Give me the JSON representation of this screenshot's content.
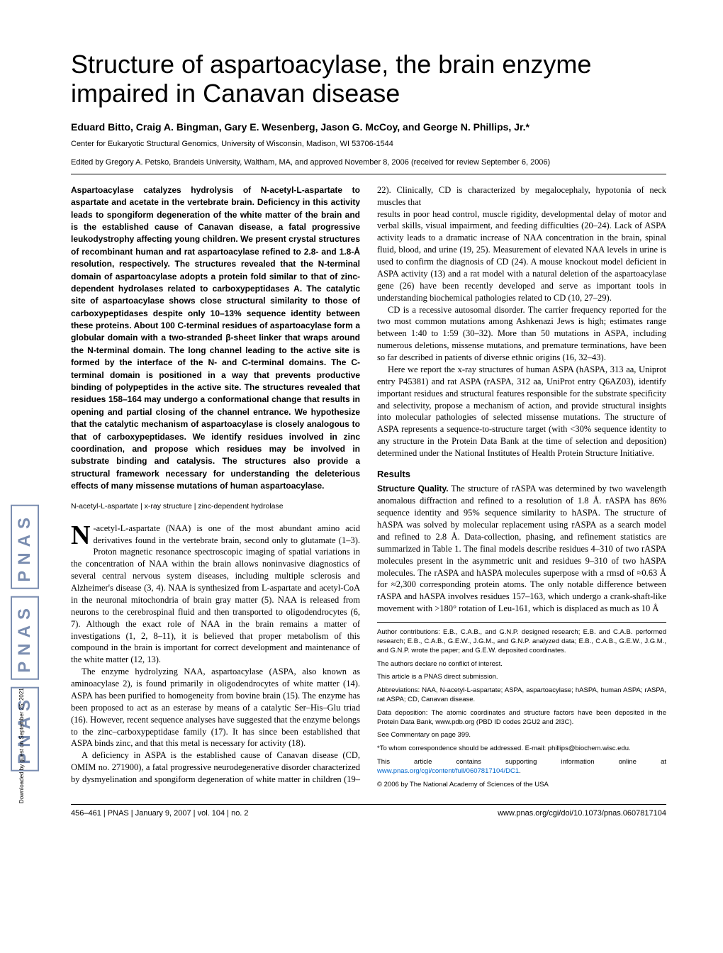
{
  "title": "Structure of aspartoacylase, the brain enzyme impaired in Canavan disease",
  "authors": "Eduard Bitto, Craig A. Bingman, Gary E. Wesenberg, Jason G. McCoy, and George N. Phillips, Jr.*",
  "affiliation": "Center for Eukaryotic Structural Genomics, University of Wisconsin, Madison, WI 53706-1544",
  "editor_line": "Edited by Gregory A. Petsko, Brandeis University, Waltham, MA, and approved November 8, 2006 (received for review September 6, 2006)",
  "abstract": "Aspartoacylase catalyzes hydrolysis of N-acetyl-L-aspartate to aspartate and acetate in the vertebrate brain. Deficiency in this activity leads to spongiform degeneration of the white matter of the brain and is the established cause of Canavan disease, a fatal progressive leukodystrophy affecting young children. We present crystal structures of recombinant human and rat aspartoacylase refined to 2.8- and 1.8-Å resolution, respectively. The structures revealed that the N-terminal domain of aspartoacylase adopts a protein fold similar to that of zinc-dependent hydrolases related to carboxypeptidases A. The catalytic site of aspartoacylase shows close structural similarity to those of carboxypeptidases despite only 10–13% sequence identity between these proteins. About 100 C-terminal residues of aspartoacylase form a globular domain with a two-stranded β-sheet linker that wraps around the N-terminal domain. The long channel leading to the active site is formed by the interface of the N- and C-terminal domains. The C-terminal domain is positioned in a way that prevents productive binding of polypeptides in the active site. The structures revealed that residues 158–164 may undergo a conformational change that results in opening and partial closing of the channel entrance. We hypothesize that the catalytic mechanism of aspartoacylase is closely analogous to that of carboxypeptidases. We identify residues involved in zinc coordination, and propose which residues may be involved in substrate binding and catalysis. The structures also provide a structural framework necessary for understanding the deleterious effects of many missense mutations of human aspartoacylase.",
  "keywords": "N-acetyl-L-aspartate | x-ray structure | zinc-dependent hydrolase",
  "dropcap": "N",
  "para1_start": "-acetyl-L-aspartate (NAA) is one of the most abundant amino acid derivatives found in the vertebrate brain, second only to glutamate (1–3). Proton magnetic resonance spectroscopic imaging of spatial variations in the concentration of NAA within the brain allows noninvasive diagnostics of several central nervous system diseases, including multiple sclerosis and Alzheimer's disease (3, 4). NAA is synthesized from L-aspartate and acetyl-CoA in the neuronal mitochondria of brain gray matter (5). NAA is released from neurons to the cerebrospinal fluid and then transported to oligodendrocytes (6, 7). Although the exact role of NAA in the brain remains a matter of investigations (1, 2, 8–11), it is believed that proper metabolism of this compound in the brain is important for correct development and maintenance of the white matter (12, 13).",
  "para2": "The enzyme hydrolyzing NAA, aspartoacylase (ASPA, also known as aminoacylase 2), is found primarily in oligodendrocytes of white matter (14). ASPA has been purified to homogeneity from bovine brain (15). The enzyme has been proposed to act as an esterase by means of a catalytic Ser–His–Glu triad (16). However, recent sequence analyses have suggested that the enzyme belongs to the zinc–carboxypeptidase family (17). It has since been established that ASPA binds zinc, and that this metal is necessary for activity (18).",
  "para3": "A deficiency in ASPA is the established cause of Canavan disease (CD, OMIM no. 271900), a fatal progressive neurodegenerative disorder characterized by dysmyelination and spongiform degeneration of white matter in children (19–22). Clinically, CD is characterized by megalocephaly, hypotonia of neck muscles that",
  "para4": "results in poor head control, muscle rigidity, developmental delay of motor and verbal skills, visual impairment, and feeding difficulties (20–24). Lack of ASPA activity leads to a dramatic increase of NAA concentration in the brain, spinal fluid, blood, and urine (19, 25). Measurement of elevated NAA levels in urine is used to confirm the diagnosis of CD (24). A mouse knockout model deficient in ASPA activity (13) and a rat model with a natural deletion of the aspartoacylase gene (26) have been recently developed and serve as important tools in understanding biochemical pathologies related to CD (10, 27–29).",
  "para5": "CD is a recessive autosomal disorder. The carrier frequency reported for the two most common mutations among Ashkenazi Jews is high; estimates range between 1:40 to 1:59 (30–32). More than 50 mutations in ASPA, including numerous deletions, missense mutations, and premature terminations, have been so far described in patients of diverse ethnic origins (16, 32–43).",
  "para6": "Here we report the x-ray structures of human ASPA (hASPA, 313 aa, Uniprot entry P45381) and rat ASPA (rASPA, 312 aa, UniProt entry Q6AZ03), identify important residues and structural features responsible for the substrate specificity and selectivity, propose a mechanism of action, and provide structural insights into molecular pathologies of selected missense mutations. The structure of ASPA represents a sequence-to-structure target (with <30% sequence identity to any structure in the Protein Data Bank at the time of selection and deposition) determined under the National Institutes of Health Protein Structure Initiative.",
  "results_head": "Results",
  "structure_quality_head": "Structure Quality.",
  "para7": " The structure of rASPA was determined by two wavelength anomalous diffraction and refined to a resolution of 1.8 Å. rASPA has 86% sequence identity and 95% sequence similarity to hASPA. The structure of hASPA was solved by molecular replacement using rASPA as a search model and refined to 2.8 Å. Data-collection, phasing, and refinement statistics are summarized in Table 1. The final models describe residues 4–310 of two rASPA molecules present in the asymmetric unit and residues 9–310 of two hASPA molecules. The rASPA and hASPA molecules superpose with a rmsd of ≈0.63 Å for ≈2,300 corresponding protein atoms. The only notable difference between rASPA and hASPA involves residues 157–163, which undergo a crank-shaft-like movement with >180° rotation of Leu-161, which is displaced as much as 10 Å",
  "fn1": "Author contributions: E.B., C.A.B., and G.N.P. designed research; E.B. and C.A.B. performed research; E.B., C.A.B., G.E.W., J.G.M., and G.N.P. analyzed data; E.B., C.A.B., G.E.W., J.G.M., and G.N.P. wrote the paper; and G.E.W. deposited coordinates.",
  "fn2": "The authors declare no conflict of interest.",
  "fn3": "This article is a PNAS direct submission.",
  "fn4": "Abbreviations: NAA, N-acetyl-L-aspartate; ASPA, aspartoacylase; hASPA, human ASPA; rASPA, rat ASPA; CD, Canavan disease.",
  "fn5": "Data deposition: The atomic coordinates and structure factors have been deposited in the Protein Data Bank, www.pdb.org (PBD ID codes 2GU2 and 2I3C).",
  "fn6": "See Commentary on page 399.",
  "fn7": "*To whom correspondence should be addressed. E-mail: phillips@biochem.wisc.edu.",
  "fn8a": "This article contains supporting information online at ",
  "fn8_link": "www.pnas.org/cgi/content/full/0607817104/DC1",
  "fn8b": ".",
  "fn9": "© 2006 by The National Academy of Sciences of the USA",
  "footer_left": "456–461  |  PNAS  |  January 9, 2007  |  vol. 104  |  no. 2",
  "footer_right": "www.pnas.org/cgi/doi/10.1073/pnas.0607817104",
  "pnas": "PNAS",
  "side_note": "Downloaded by guest on September 25, 2021"
}
